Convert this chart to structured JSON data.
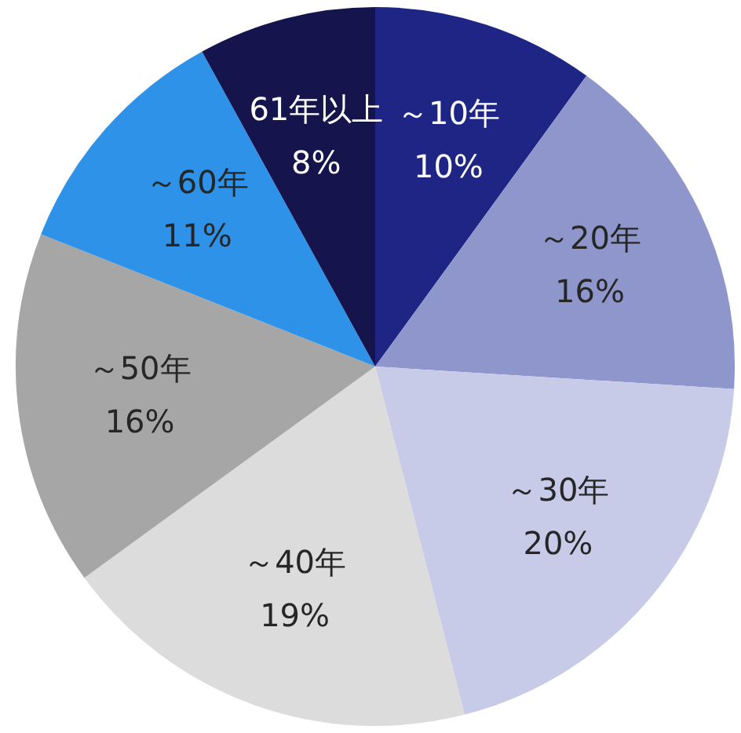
{
  "chart_data": {
    "type": "pie",
    "categories": [
      "～10年",
      "～20年",
      "～30年",
      "～40年",
      "～50年",
      "～60年",
      "61年以上"
    ],
    "values": [
      10,
      16,
      20,
      19,
      16,
      11,
      8
    ],
    "value_labels": [
      "10%",
      "16%",
      "20%",
      "19%",
      "16%",
      "11%",
      "8%"
    ],
    "colors": [
      "#1f2585",
      "#8e96cb",
      "#c8cbe8",
      "#dcdcdc",
      "#a6a6a6",
      "#2e92e8",
      "#15144d"
    ],
    "legend": false
  }
}
